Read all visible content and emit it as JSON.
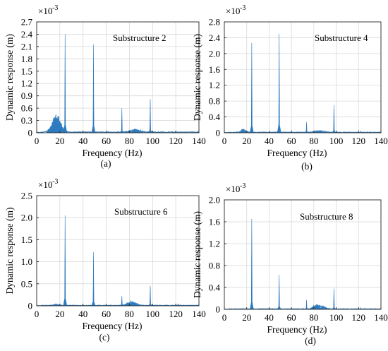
{
  "chart_data": [
    {
      "type": "line",
      "panel_label": "(a)",
      "annotation": "Substructure 2",
      "xlabel": "Frequency (Hz)",
      "ylabel": "Dynamic response (m)",
      "y_exponent": "×10",
      "y_exponent_power": "-3",
      "xlim": [
        0,
        140
      ],
      "ylim": [
        0,
        2.7
      ],
      "x_ticks": [
        "0",
        "20",
        "40",
        "60",
        "80",
        "100",
        "120",
        "140"
      ],
      "y_ticks": [
        "0",
        "0.3",
        "0.6",
        "0.9",
        "1.2",
        "1.5",
        "1.8",
        "2.1",
        "2.4",
        "2.7"
      ],
      "grid": true,
      "series_color": "#2e7bbf",
      "peaks": [
        {
          "x": 24.5,
          "y": 2.4
        },
        {
          "x": 49,
          "y": 2.15
        },
        {
          "x": 73.5,
          "y": 0.6
        },
        {
          "x": 98,
          "y": 0.82
        }
      ],
      "humps": [
        {
          "x": 17,
          "y": 0.45,
          "width": 5
        },
        {
          "x": 85,
          "y": 0.08,
          "width": 6
        }
      ],
      "noise_floor": 0.02
    },
    {
      "type": "line",
      "panel_label": "(b)",
      "annotation": "Substructure 4",
      "xlabel": "Frequency (Hz)",
      "ylabel": "Dynamic response (m)",
      "y_exponent": "×10",
      "y_exponent_power": "-3",
      "xlim": [
        0,
        140
      ],
      "ylim": [
        0,
        2.8
      ],
      "x_ticks": [
        "0",
        "20",
        "40",
        "60",
        "80",
        "100",
        "120",
        "140"
      ],
      "y_ticks": [
        "0",
        "0.4",
        "0.8",
        "1.2",
        "1.6",
        "2.0",
        "2.4",
        "2.8"
      ],
      "grid": true,
      "series_color": "#2e7bbf",
      "peaks": [
        {
          "x": 24.5,
          "y": 2.27
        },
        {
          "x": 49,
          "y": 2.5
        },
        {
          "x": 73.5,
          "y": 0.27
        },
        {
          "x": 98,
          "y": 0.7
        },
        {
          "x": 122,
          "y": 0.05
        }
      ],
      "humps": [
        {
          "x": 17,
          "y": 0.08,
          "width": 3
        },
        {
          "x": 85,
          "y": 0.05,
          "width": 6
        }
      ],
      "noise_floor": 0.015
    },
    {
      "type": "line",
      "panel_label": "(c)",
      "annotation": "Substructure 6",
      "xlabel": "Frequency (Hz)",
      "ylabel": "Dynamic response (m)",
      "y_exponent": "×10",
      "y_exponent_power": "-3",
      "xlim": [
        0,
        140
      ],
      "ylim": [
        0,
        2.5
      ],
      "x_ticks": [
        "0",
        "20",
        "40",
        "60",
        "80",
        "100",
        "120",
        "140"
      ],
      "y_ticks": [
        "0",
        "0.5",
        "1.0",
        "1.5",
        "2.0",
        "2.5"
      ],
      "grid": true,
      "series_color": "#2e7bbf",
      "peaks": [
        {
          "x": 24.5,
          "y": 2.05
        },
        {
          "x": 49,
          "y": 1.22
        },
        {
          "x": 73.5,
          "y": 0.22
        },
        {
          "x": 98,
          "y": 0.45
        },
        {
          "x": 122,
          "y": 0.05
        }
      ],
      "humps": [
        {
          "x": 82,
          "y": 0.1,
          "width": 5
        },
        {
          "x": 17,
          "y": 0.03,
          "width": 3
        }
      ],
      "noise_floor": 0.012
    },
    {
      "type": "line",
      "panel_label": "(d)",
      "annotation": "Substructure 8",
      "xlabel": "Frequency (Hz)",
      "ylabel": "Dynamic response (m)",
      "y_exponent": "×10",
      "y_exponent_power": "-3",
      "xlim": [
        0,
        140
      ],
      "ylim": [
        0,
        2.0
      ],
      "x_ticks": [
        "0",
        "20",
        "40",
        "60",
        "80",
        "100",
        "120",
        "140"
      ],
      "y_ticks": [
        "0",
        "0.4",
        "0.8",
        "1.2",
        "1.6",
        "2.0"
      ],
      "grid": true,
      "series_color": "#2e7bbf",
      "peaks": [
        {
          "x": 24.5,
          "y": 1.65
        },
        {
          "x": 49,
          "y": 0.63
        },
        {
          "x": 73.5,
          "y": 0.17
        },
        {
          "x": 98,
          "y": 0.38
        },
        {
          "x": 122,
          "y": 0.03
        }
      ],
      "humps": [
        {
          "x": 82,
          "y": 0.08,
          "width": 4
        },
        {
          "x": 88,
          "y": 0.05,
          "width": 4
        }
      ],
      "noise_floor": 0.01
    }
  ]
}
